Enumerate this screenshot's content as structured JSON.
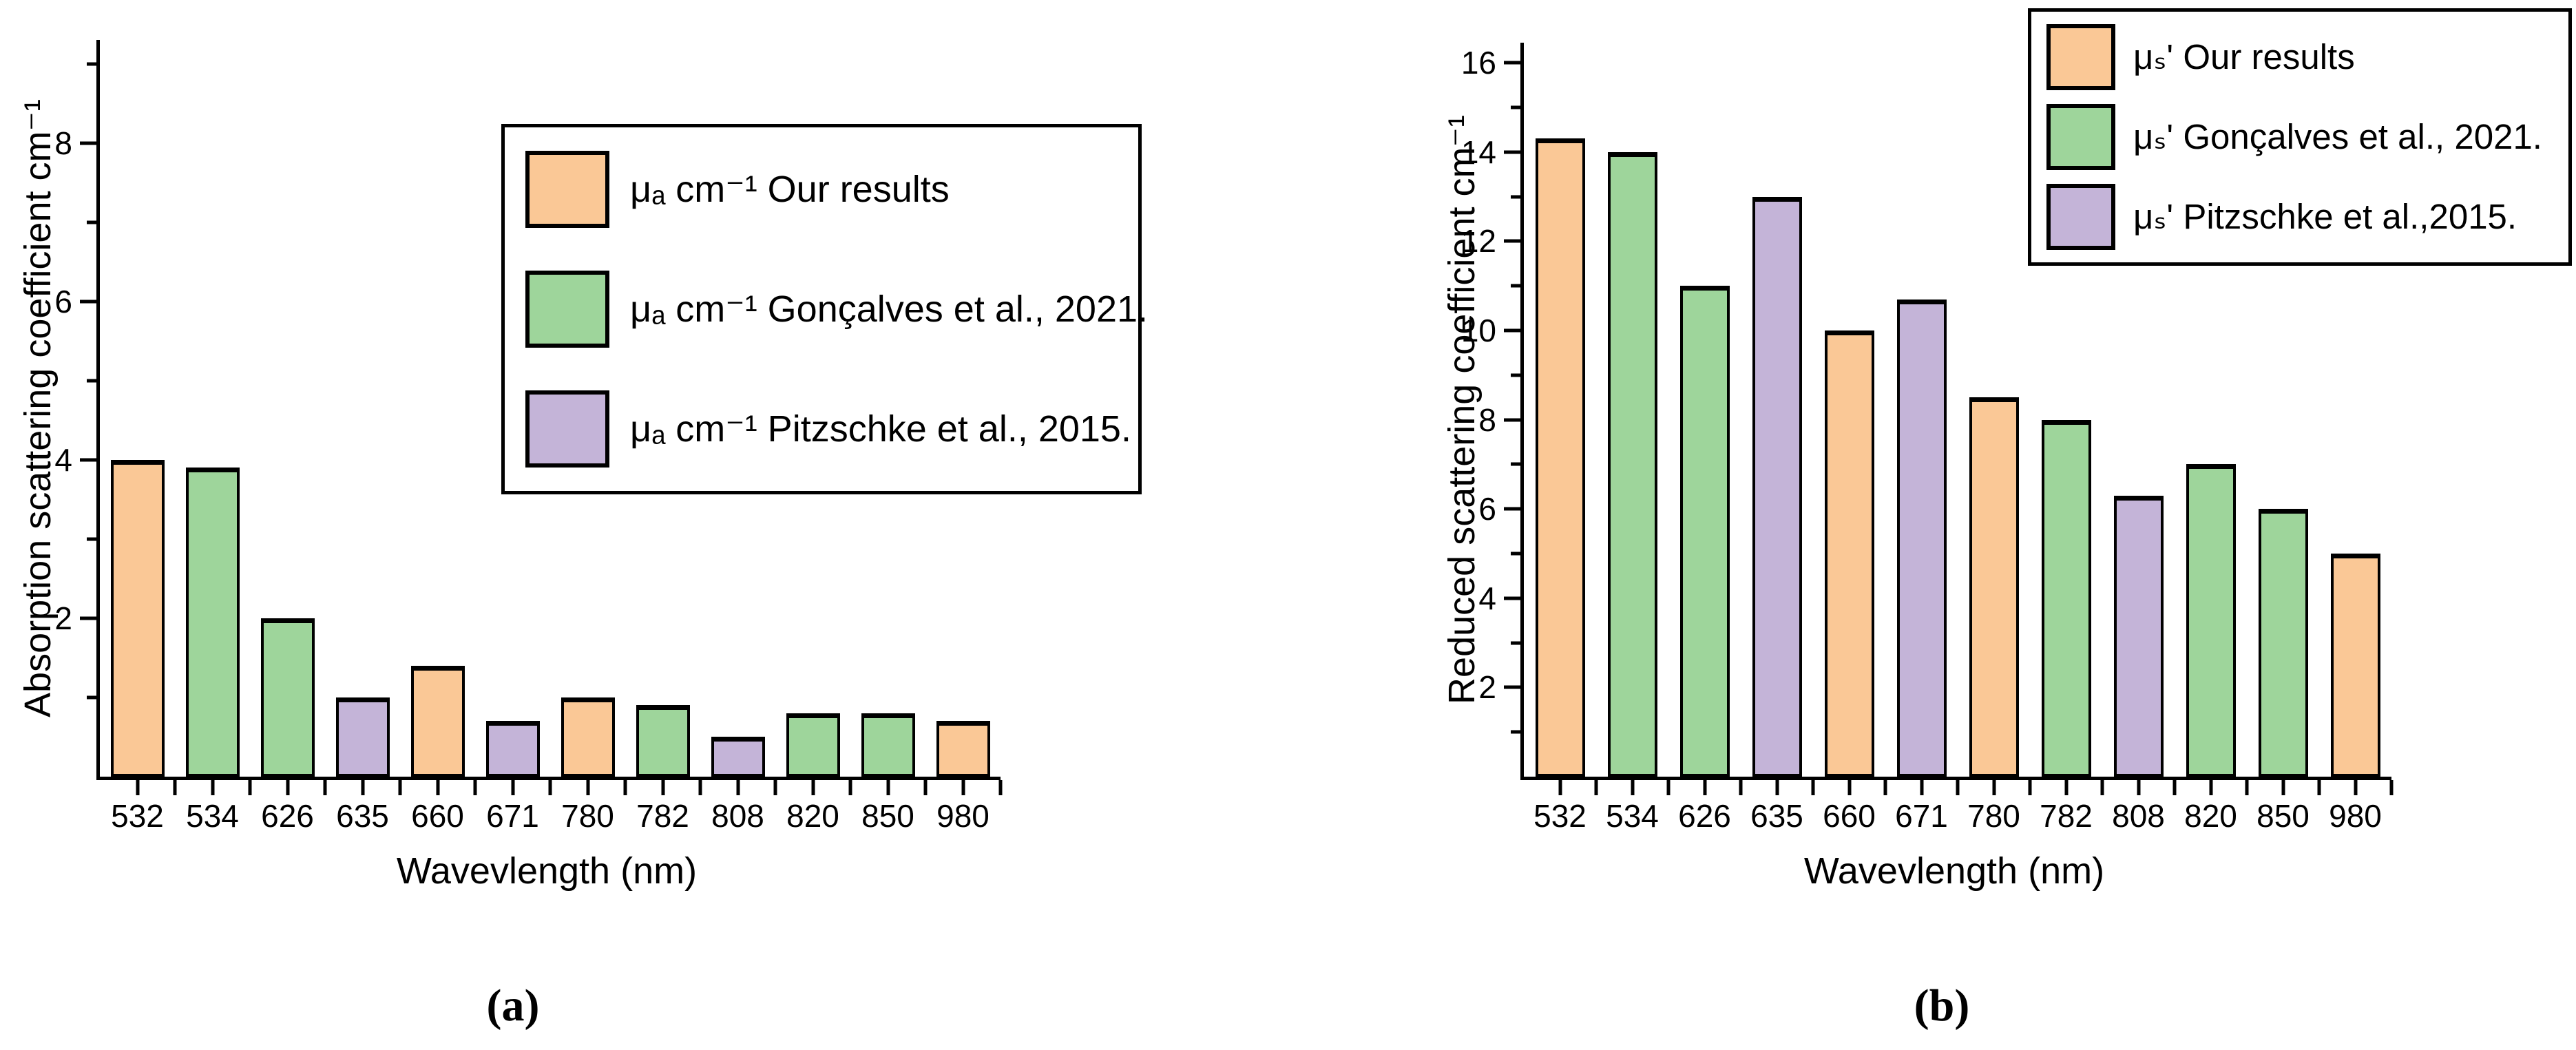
{
  "figure": {
    "background": "#ffffff",
    "text_color": "#000000"
  },
  "series_colors": {
    "ours": "#FAC896",
    "goncalves": "#9ED59B",
    "pitzschke": "#C4B4D8"
  },
  "chart_data": [
    {
      "type": "bar",
      "title": "",
      "caption": "(a)",
      "xlabel": "Wavevlength (nm)",
      "ylabel": "Absorption scattering coefficient cm⁻¹",
      "categories": [
        "532",
        "534",
        "626",
        "635",
        "660",
        "671",
        "780",
        "782",
        "808",
        "820",
        "850",
        "980"
      ],
      "values": [
        4.0,
        3.9,
        2.0,
        1.0,
        1.4,
        0.7,
        1.0,
        0.9,
        0.5,
        0.8,
        0.8,
        0.7
      ],
      "bar_series": [
        "ours",
        "goncalves",
        "goncalves",
        "pitzschke",
        "ours",
        "pitzschke",
        "ours",
        "goncalves",
        "pitzschke",
        "goncalves",
        "goncalves",
        "ours"
      ],
      "legend": [
        {
          "key": "ours",
          "label": "μₐ cm⁻¹ Our results"
        },
        {
          "key": "goncalves",
          "label": "μₐ cm⁻¹ Gonçalves et al., 2021."
        },
        {
          "key": "pitzschke",
          "label": "μₐ cm⁻¹ Pitzschke et al., 2015."
        }
      ],
      "legend_position": "top-right-inside",
      "grid": false,
      "ylim": [
        0,
        9.3
      ],
      "y_major_ticks": [
        2,
        4,
        6,
        8
      ],
      "y_minor_ticks": [
        1,
        3,
        5,
        7,
        9
      ]
    },
    {
      "type": "bar",
      "title": "",
      "caption": "(b)",
      "xlabel": "Wavevlength (nm)",
      "ylabel": "Reduced scattering coefficient cm⁻¹",
      "categories": [
        "532",
        "534",
        "626",
        "635",
        "660",
        "671",
        "780",
        "782",
        "808",
        "820",
        "850",
        "980"
      ],
      "values": [
        14.3,
        14.0,
        11.0,
        13.0,
        10.0,
        10.7,
        8.5,
        8.0,
        6.3,
        7.0,
        6.0,
        5.0
      ],
      "bar_series": [
        "ours",
        "goncalves",
        "goncalves",
        "pitzschke",
        "ours",
        "pitzschke",
        "ours",
        "goncalves",
        "pitzschke",
        "goncalves",
        "goncalves",
        "ours"
      ],
      "legend": [
        {
          "key": "ours",
          "label": "μₛ' Our results"
        },
        {
          "key": "goncalves",
          "label": "μₛ' Gonçalves et al., 2021."
        },
        {
          "key": "pitzschke",
          "label": "μₛ' Pitzschke et al.,2015."
        }
      ],
      "legend_position": "top-right-outside-plot",
      "grid": false,
      "ylim": [
        0,
        16.45
      ],
      "y_major_ticks": [
        2,
        4,
        6,
        8,
        10,
        12,
        14,
        16
      ],
      "y_minor_ticks": [
        1,
        3,
        5,
        7,
        9,
        11,
        13,
        15
      ]
    }
  ]
}
